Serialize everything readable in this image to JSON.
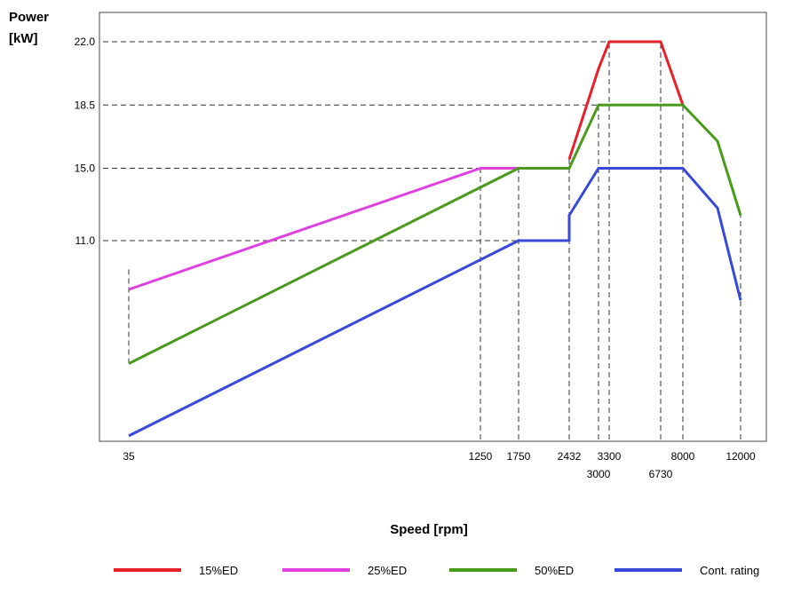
{
  "chart_data": {
    "type": "line",
    "ylabel_line1": "Power",
    "ylabel_line2": "[kW]",
    "xlabel": "Speed [rpm]",
    "y_ticks": [
      {
        "value": 22.0,
        "label": "22.0"
      },
      {
        "value": 18.5,
        "label": "18.5"
      },
      {
        "value": 15.0,
        "label": "15.0"
      },
      {
        "value": 11.0,
        "label": "11.0"
      }
    ],
    "x_ticks_top": [
      {
        "value": 35,
        "label": "35"
      },
      {
        "value": 1250,
        "label": "1250"
      },
      {
        "value": 1750,
        "label": "1750"
      },
      {
        "value": 2432,
        "label": "2432"
      },
      {
        "value": 3300,
        "label": "3300"
      },
      {
        "value": 8000,
        "label": "8000"
      },
      {
        "value": 12000,
        "label": "12000"
      }
    ],
    "x_ticks_bottom": [
      {
        "value": 3000,
        "label": "3000"
      },
      {
        "value": 6730,
        "label": "6730"
      }
    ],
    "series": [
      {
        "name": "15%ED",
        "color": "#e8202a",
        "x": [
          2432,
          3000,
          3300,
          6730,
          8000
        ],
        "y": [
          15.5,
          20.5,
          22.0,
          22.0,
          18.5
        ]
      },
      {
        "name": "25%ED",
        "color": "#e040e0",
        "x": [
          35,
          1250,
          1750,
          2432
        ],
        "y": [
          8.3,
          15.0,
          15.0,
          15.0
        ]
      },
      {
        "name": "50%ED",
        "color": "#4a9a1c",
        "x": [
          35,
          1750,
          2432,
          3000,
          8000,
          10000,
          12000
        ],
        "y": [
          4.2,
          15.0,
          15.0,
          18.5,
          18.5,
          16.5,
          12.4
        ]
      },
      {
        "name": "Cont. rating",
        "color": "#3848d8",
        "x": [
          35,
          1750,
          2432,
          2432,
          3000,
          8000,
          10000,
          12000
        ],
        "y": [
          0.2,
          11.0,
          11.0,
          12.4,
          15.0,
          15.0,
          12.8,
          7.7
        ]
      }
    ]
  }
}
